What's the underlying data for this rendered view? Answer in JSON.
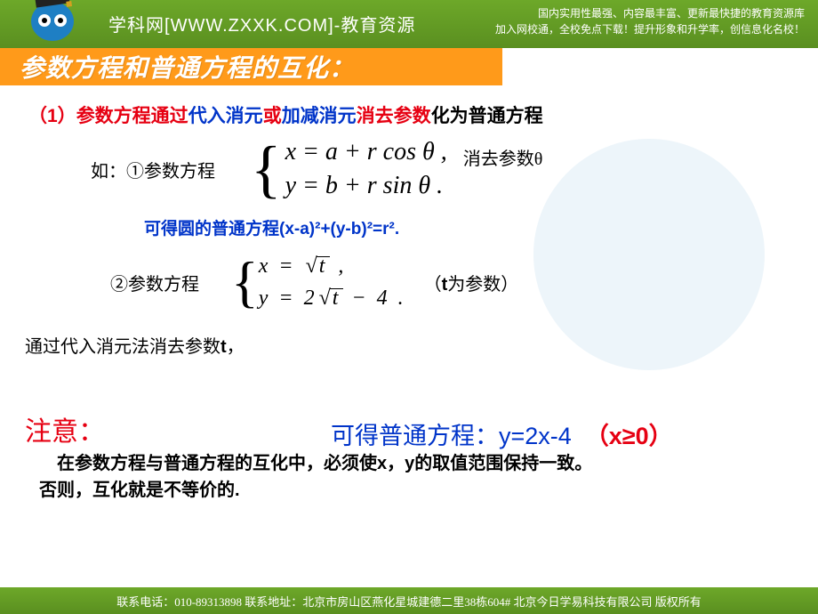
{
  "header": {
    "site_prefix": "学科网",
    "url_open": "[",
    "url": "WWW.ZXXK.COM",
    "url_close": "]",
    "tagline": "-教育资源",
    "desc_line1": "国内实用性最强、内容最丰富、更新最快捷的教育资源库",
    "desc_line2": "加入网校通，全校免点下载！提升形象和升学率，创信息化名校！"
  },
  "title": "参数方程和普通方程的互化：",
  "section1": {
    "num": "（1）",
    "p1": "参数方程通过",
    "m1": "代入消元",
    "or": "或",
    "m2": "加减消元",
    "elim": "消去参数",
    "tail": "化为普通方程"
  },
  "ex1": {
    "label": "如：①参数方程",
    "eq_x": "x = a + r cos θ ,",
    "eq_y": "y = b + r sin θ .",
    "elim": "消去参数θ",
    "result": "可得圆的普通方程(x-a)²+(y-b)²=r²."
  },
  "ex2": {
    "label": "②参数方程",
    "eq_x_pre": "x  =  ",
    "eq_x_sqrt": "t",
    "eq_x_post": " ,",
    "eq_y_pre": "y  =  2",
    "eq_y_sqrt": "t",
    "eq_y_post": "  −  4 .",
    "param": "（t为参数）"
  },
  "sub_elim": {
    "pre": "通过代入消元法消去参数",
    "t": "t",
    "post": "，"
  },
  "result2": {
    "text": "可得普通方程：y=2x-4",
    "cond": "（x≥0）"
  },
  "notice": {
    "title": "注意：",
    "line1": "　在参数方程与普通方程的互化中，必须使x，y的取值范围保持一致。",
    "line2": "否则，互化就是不等价的."
  },
  "footer": {
    "text": "联系电话：010-89313898  联系地址：北京市房山区燕化星城建德二里38栋604#  北京今日学易科技有限公司  版权所有"
  },
  "colors": {
    "header_bg": "#5a8f20",
    "title_bg": "#ff9a1a",
    "red": "#e60012",
    "blue": "#0034c9"
  }
}
